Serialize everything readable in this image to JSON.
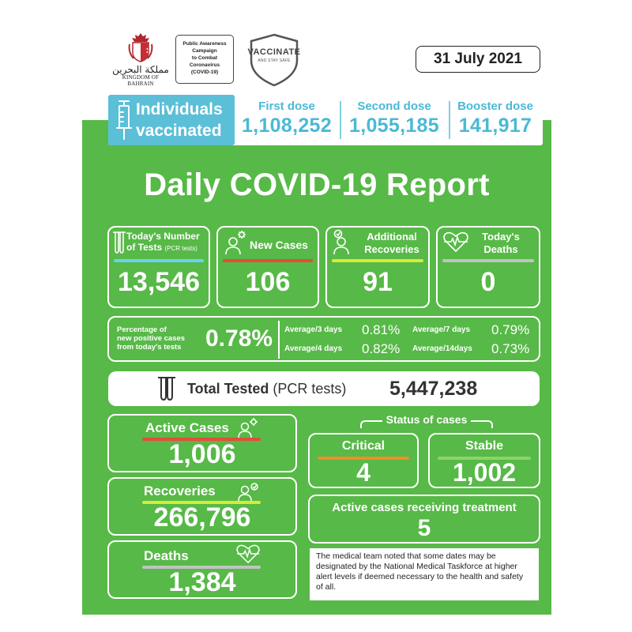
{
  "header": {
    "kingdom_arabic": "مملكة البحرين",
    "kingdom_english": "KINGDOM OF BAHRAIN",
    "campaign": "Public Awareness\nCampaign\nto Combat\nCoronavirus\n(COVID-19)",
    "vaccinate_title": "VACCINATE",
    "vaccinate_sub": "AND STAY SAFE",
    "date": "31 July 2021"
  },
  "vaccination": {
    "label_line1": "Individuals",
    "label_line2": "vaccinated",
    "first_dose_label": "First dose",
    "first_dose_value": "1,108,252",
    "second_dose_label": "Second dose",
    "second_dose_value": "1,055,185",
    "booster_dose_label": "Booster dose",
    "booster_dose_value": "141,917"
  },
  "report_title": "Daily COVID-19 Report",
  "daily": {
    "tests_label_line1": "Today's Number",
    "tests_label_line2": "of Tests",
    "tests_label_small": "(PCR tests)",
    "tests_value": "13,546",
    "new_cases_label": "New Cases",
    "new_cases_value": "106",
    "recoveries_label_line1": "Additional",
    "recoveries_label_line2": "Recoveries",
    "recoveries_value": "91",
    "deaths_label_line1": "Today's",
    "deaths_label_line2": "Deaths",
    "deaths_value": "0"
  },
  "percentage": {
    "label_line1": "Percentage of",
    "label_line2": "new positive cases",
    "label_line3": "from today's tests",
    "value": "0.78%",
    "avg3_label": "Average/3 days",
    "avg3_value": "0.81%",
    "avg4_label": "Average/4 days",
    "avg4_value": "0.82%",
    "avg7_label": "Average/7 days",
    "avg7_value": "0.79%",
    "avg14_label": "Average/14days",
    "avg14_value": "0.73%"
  },
  "total_tested": {
    "label_bold": "Total Tested",
    "label_rest": "(PCR tests)",
    "value": "5,447,238"
  },
  "totals": {
    "active_label": "Active Cases",
    "active_value": "1,006",
    "recoveries_label": "Recoveries",
    "recoveries_value": "266,796",
    "deaths_label": "Deaths",
    "deaths_value": "1,384"
  },
  "status": {
    "heading": "Status of cases",
    "critical_label": "Critical",
    "critical_value": "4",
    "stable_label": "Stable",
    "stable_value": "1,002",
    "treatment_label": "Active cases receiving treatment",
    "treatment_value": "5"
  },
  "note": "The medical team noted that some dates may be designated by the National Medical Taskforce at higher alert levels if deemed necessary to the health and safety of all.",
  "colors": {
    "green": "#57b947",
    "blue": "#4ab9d6",
    "bar_blue": "#6fd0f0",
    "bar_red": "#e64b3c",
    "bar_lime": "#d4ec3a",
    "bar_grey": "#bfc4c0",
    "bar_orange": "#f28c28",
    "bar_lightgreen": "#8fd36a"
  }
}
